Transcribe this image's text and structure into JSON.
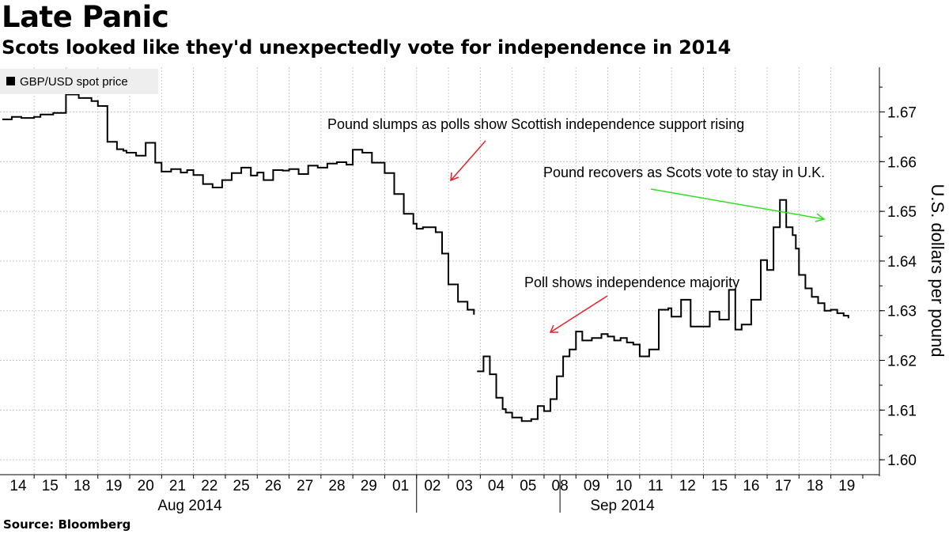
{
  "chart_data": {
    "type": "line",
    "title": "Late Panic",
    "subtitle": "Scots looked like they'd unexpectedly vote for independence in 2014",
    "source": "Source: Bloomberg",
    "ylabel": "U.S. dollars per pound",
    "ylim": [
      1.597,
      1.679
    ],
    "y_ticks": [
      "1.60",
      "1.61",
      "1.62",
      "1.63",
      "1.64",
      "1.65",
      "1.66",
      "1.67"
    ],
    "y_tick_values": [
      1.6,
      1.61,
      1.62,
      1.63,
      1.64,
      1.65,
      1.66,
      1.67
    ],
    "x_ticks": [
      "14",
      "15",
      "18",
      "19",
      "20",
      "21",
      "22",
      "25",
      "26",
      "27",
      "28",
      "29",
      "01",
      "02",
      "03",
      "04",
      "05",
      "08",
      "09",
      "10",
      "11",
      "12",
      "15",
      "16",
      "17",
      "18",
      "19"
    ],
    "month_labels": [
      "Aug 2014",
      "Sep 2014"
    ],
    "legend": [
      "GBP/USD spot price"
    ],
    "grid": true,
    "colors": {
      "line": "#000000",
      "grid": "#c8c8c8",
      "arrow_red": "#e8202a",
      "arrow_green": "#33dd22",
      "legend_bg": "#eeeeee"
    },
    "series": [
      {
        "name": "GBP/USD spot price",
        "x": [
          0.0,
          0.3,
          0.6,
          1.0,
          1.2,
          1.6,
          2.0,
          2.4,
          2.8,
          3.0,
          3.3,
          3.6,
          3.8,
          3.9,
          4.2,
          4.5,
          4.8,
          5.0,
          5.3,
          5.6,
          5.8,
          6.0,
          6.3,
          6.6,
          6.9,
          7.2,
          7.5,
          7.8,
          8.0,
          8.2,
          8.5,
          8.8,
          9.0,
          9.3,
          9.6,
          9.9,
          10.2,
          10.5,
          10.8,
          11.0,
          11.3,
          11.6,
          12.0,
          12.3,
          12.6,
          12.9,
          13.0,
          13.2,
          13.4,
          13.6,
          13.8,
          14.0,
          14.3,
          14.6,
          14.8,
          14.9,
          15.1,
          15.3,
          15.5,
          15.7,
          15.8,
          16.0,
          16.3,
          16.6,
          16.8,
          17.0,
          17.2,
          17.4,
          17.6,
          17.8,
          18.0,
          18.2,
          18.5,
          18.8,
          19.0,
          19.2,
          19.4,
          19.6,
          19.8,
          20.0,
          20.3,
          20.6,
          20.9,
          21.0,
          21.3,
          21.6,
          21.9,
          22.2,
          22.5,
          22.8,
          23.0,
          23.2,
          23.5,
          23.8,
          24.0,
          24.2,
          24.4,
          24.6,
          24.8,
          24.9,
          25.0,
          25.2,
          25.4,
          25.6,
          25.8,
          26.0,
          26.2,
          26.4,
          26.55
        ],
        "values": [
          1.6685,
          1.669,
          1.6688,
          1.669,
          1.6695,
          1.6698,
          1.6735,
          1.6728,
          1.6722,
          1.6712,
          1.664,
          1.6625,
          1.6622,
          1.6618,
          1.6612,
          1.6638,
          1.6598,
          1.658,
          1.6585,
          1.6578,
          1.6583,
          1.6573,
          1.6555,
          1.6548,
          1.6563,
          1.6577,
          1.6588,
          1.6572,
          1.6578,
          1.6563,
          1.6583,
          1.6582,
          1.6585,
          1.6575,
          1.6592,
          1.6588,
          1.6596,
          1.6599,
          1.6594,
          1.6624,
          1.6618,
          1.6598,
          1.6577,
          1.6535,
          1.6495,
          1.6475,
          1.6465,
          1.6468,
          1.6468,
          1.6458,
          1.6415,
          1.6353,
          1.6318,
          1.6302,
          1.6292,
          1.6178,
          1.6208,
          1.6172,
          1.6125,
          1.6102,
          1.6095,
          1.6085,
          1.6078,
          1.6082,
          1.6108,
          1.6098,
          1.6122,
          1.6168,
          1.6208,
          1.6222,
          1.6258,
          1.624,
          1.6245,
          1.6253,
          1.6248,
          1.624,
          1.6245,
          1.6236,
          1.6232,
          1.6208,
          1.6222,
          1.6302,
          1.6305,
          1.6288,
          1.6322,
          1.6268,
          1.6268,
          1.6298,
          1.6282,
          1.6342,
          1.6262,
          1.6272,
          1.6322,
          1.6402,
          1.6382,
          1.6468,
          1.6523,
          1.6468,
          1.6452,
          1.6425,
          1.6372,
          1.6345,
          1.6328,
          1.6315,
          1.63,
          1.6302,
          1.6295,
          1.629,
          1.6285
        ],
        "gaps_after_index": [
          54
        ]
      }
    ],
    "annotations": [
      {
        "text": "Pound slumps as polls show Scottish independence support rising"
      },
      {
        "text": "Pound recovers as Scots vote to stay in U.K."
      },
      {
        "text": "Poll shows independence majority"
      }
    ]
  }
}
